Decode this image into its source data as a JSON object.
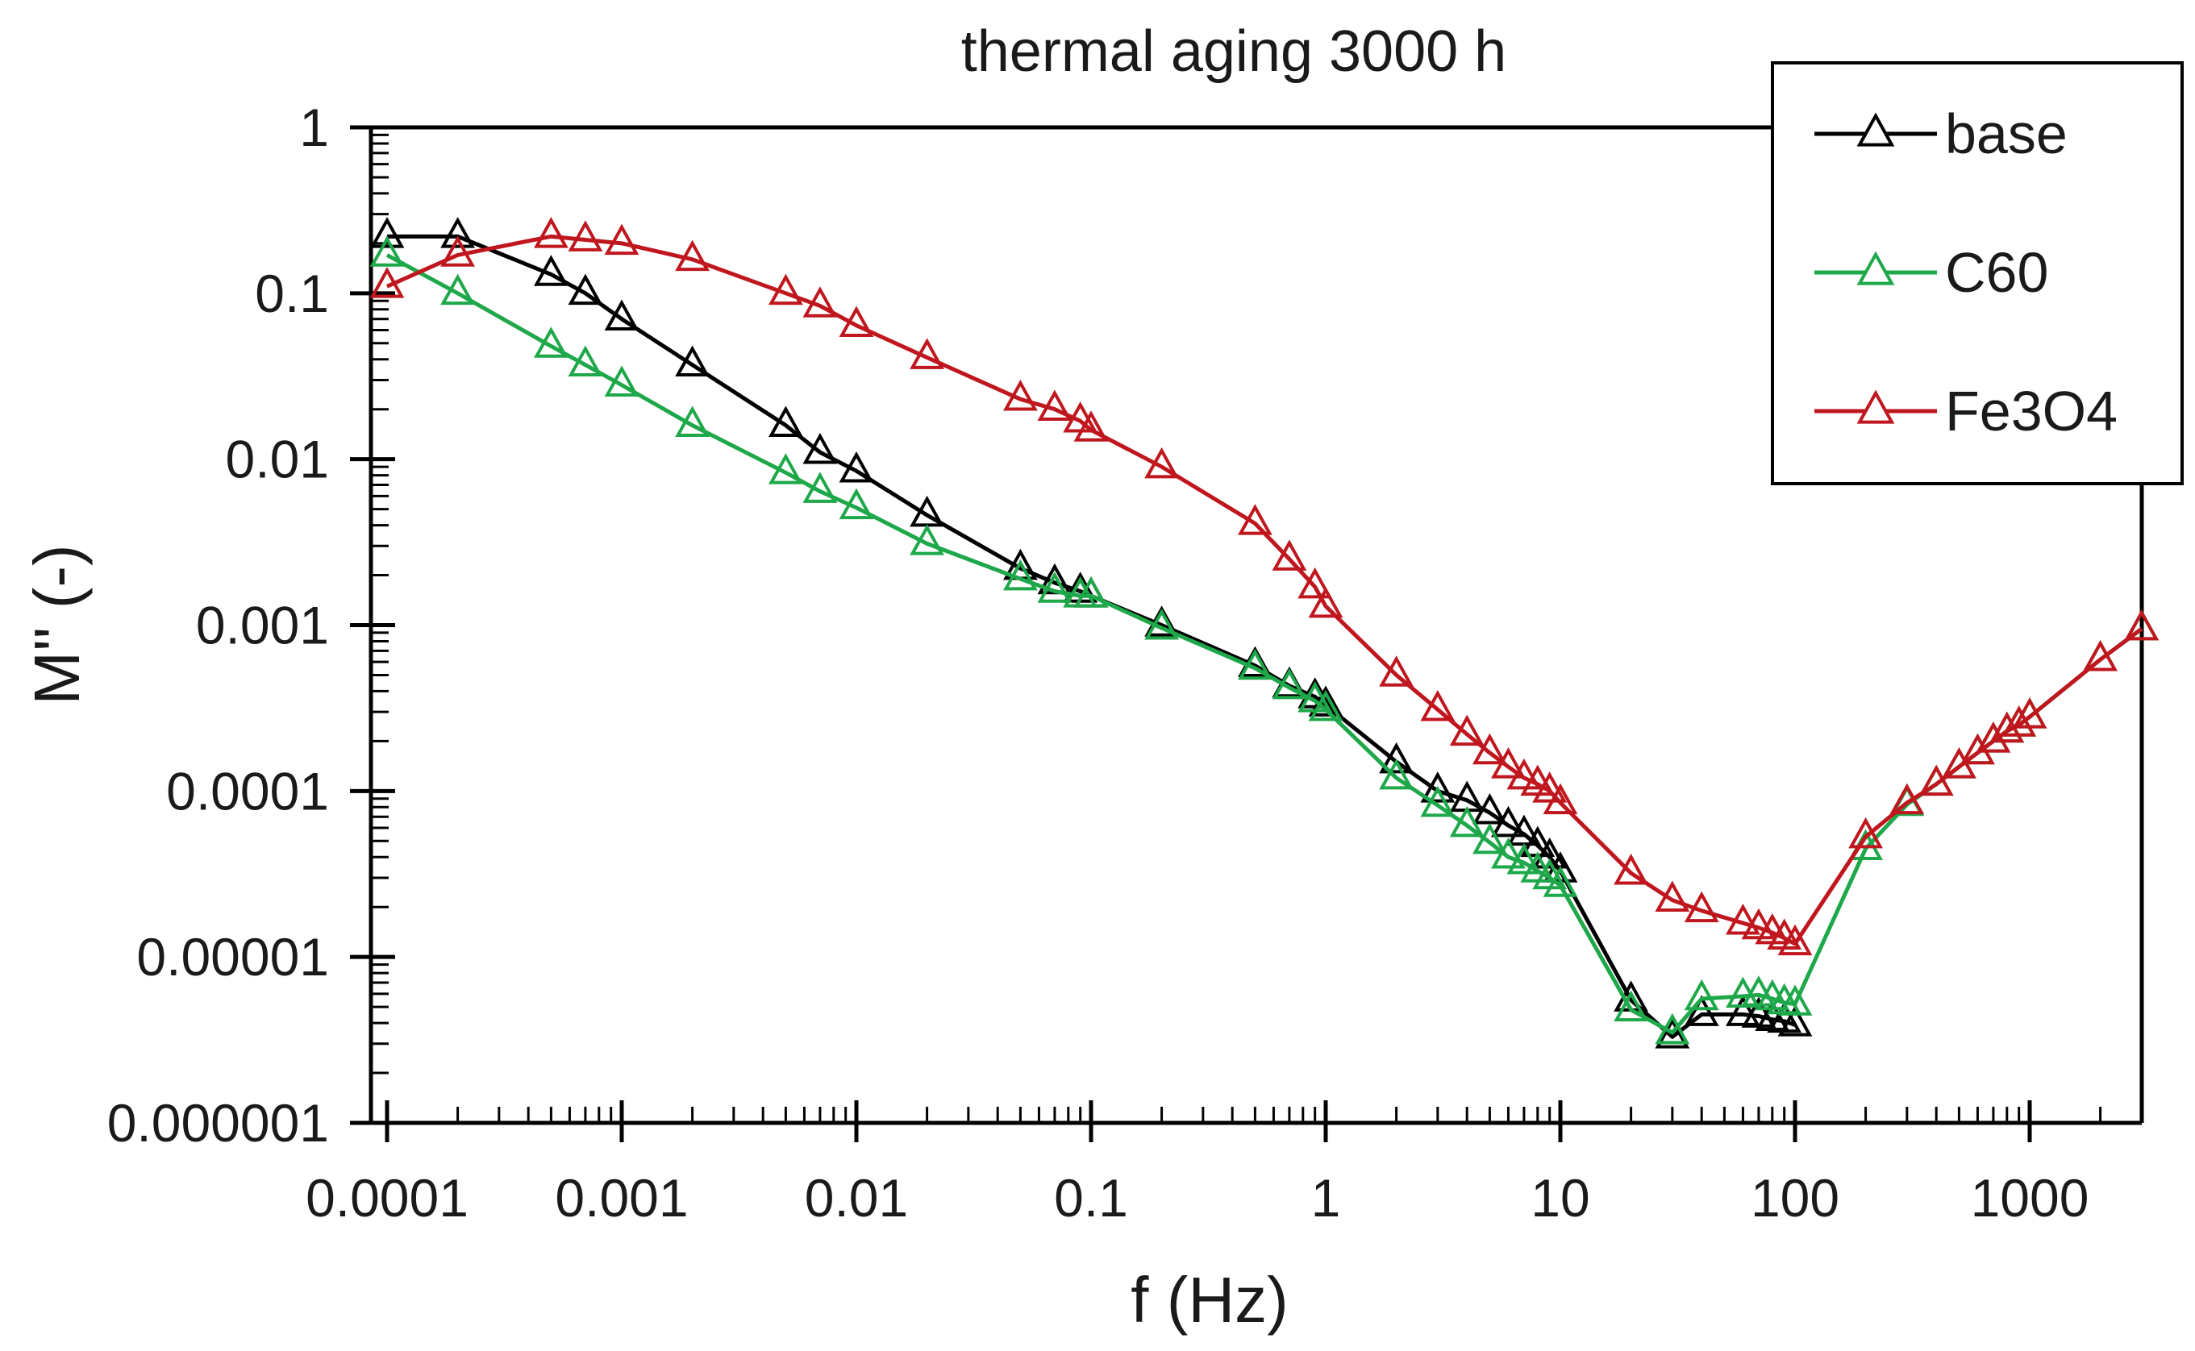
{
  "chart_data": {
    "type": "line",
    "title": "thermal aging 3000 h",
    "xlabel": "f (Hz)",
    "ylabel": "M'' (-)",
    "xscale": "log",
    "yscale": "log",
    "xlim": [
      0.0001,
      3000
    ],
    "ylim": [
      1e-06,
      1
    ],
    "xticks": [
      0.0001,
      0.001,
      0.01,
      0.1,
      1,
      10,
      100,
      1000
    ],
    "xtick_labels": [
      "0.0001",
      "0.001",
      "0.01",
      "0.1",
      "1",
      "10",
      "100",
      "1000"
    ],
    "yticks": [
      1,
      0.1,
      0.01,
      0.001,
      0.0001,
      1e-05,
      1e-06
    ],
    "ytick_labels": [
      "1",
      "0.1",
      "0.01",
      "0.001",
      "0.0001",
      "0.00001",
      "0.000001"
    ],
    "legend_position": "top-right",
    "marker": "open-triangle",
    "series": [
      {
        "name": "base",
        "color": "#000000",
        "x": [
          0.0001,
          0.0002,
          0.0005,
          0.0007,
          0.001,
          0.002,
          0.005,
          0.007,
          0.01,
          0.02,
          0.05,
          0.07,
          0.09,
          0.1,
          0.2,
          0.5,
          0.7,
          0.9,
          1,
          2,
          3,
          4,
          5,
          6,
          7,
          8,
          9,
          10,
          20,
          30,
          40,
          60,
          70,
          80,
          90,
          100
        ],
        "y": [
          0.22,
          0.22,
          0.13,
          0.1,
          0.07,
          0.037,
          0.016,
          0.011,
          0.0085,
          0.0046,
          0.0022,
          0.0018,
          0.0016,
          0.0015,
          0.001,
          0.00057,
          0.00043,
          0.00037,
          0.00033,
          0.00015,
          0.0001,
          8.8e-05,
          7.4e-05,
          6.2e-05,
          5.5e-05,
          4.7e-05,
          4e-05,
          3.3e-05,
          5.5e-06,
          3.3e-06,
          4.5e-06,
          4.5e-06,
          4.4e-06,
          4.2e-06,
          4.1e-06,
          3.9e-06
        ]
      },
      {
        "name": "C60",
        "color": "#1ea84a",
        "x": [
          0.0001,
          0.0002,
          0.0005,
          0.0007,
          0.001,
          0.002,
          0.005,
          0.007,
          0.01,
          0.02,
          0.05,
          0.07,
          0.09,
          0.1,
          0.2,
          0.5,
          0.7,
          0.9,
          1,
          2,
          3,
          4,
          5,
          6,
          7,
          8,
          9,
          10,
          20,
          30,
          40,
          60,
          70,
          80,
          90,
          100,
          200,
          300,
          400,
          500,
          600,
          700,
          800,
          900,
          1000,
          2000,
          3000
        ],
        "y": [
          0.17,
          0.1,
          0.048,
          0.037,
          0.028,
          0.016,
          0.0083,
          0.0064,
          0.0051,
          0.0031,
          0.0019,
          0.0016,
          0.0015,
          0.0015,
          0.00096,
          0.00055,
          0.00042,
          0.00035,
          0.00031,
          0.00012,
          8.2e-05,
          6.2e-05,
          4.9e-05,
          4e-05,
          3.7e-05,
          3.3e-05,
          3e-05,
          2.7e-05,
          4.8e-06,
          3.5e-06,
          5.6e-06,
          5.8e-06,
          5.9e-06,
          5.6e-06,
          5.3e-06,
          5.2e-06,
          4.5e-05,
          8.3e-05,
          0.00011,
          0.00014,
          0.00017,
          0.0002,
          0.00023,
          0.00025,
          0.00028,
          0.00062,
          0.00095
        ]
      },
      {
        "name": "Fe3O4",
        "color": "#c0161e",
        "x": [
          0.0001,
          0.0002,
          0.0005,
          0.0007,
          0.001,
          0.002,
          0.005,
          0.007,
          0.01,
          0.02,
          0.05,
          0.07,
          0.09,
          0.1,
          0.2,
          0.5,
          0.7,
          0.9,
          1,
          2,
          3,
          4,
          5,
          6,
          7,
          8,
          9,
          10,
          20,
          30,
          40,
          60,
          70,
          80,
          90,
          100,
          200,
          300,
          400,
          500,
          600,
          700,
          800,
          900,
          1000,
          2000,
          3000
        ],
        "y": [
          0.11,
          0.17,
          0.22,
          0.21,
          0.2,
          0.16,
          0.1,
          0.084,
          0.064,
          0.041,
          0.023,
          0.02,
          0.017,
          0.015,
          0.009,
          0.0041,
          0.0025,
          0.0017,
          0.0013,
          0.0005,
          0.00031,
          0.00022,
          0.00017,
          0.00014,
          0.00012,
          0.00011,
          0.0001,
          8.5e-05,
          3.2e-05,
          2.2e-05,
          1.9e-05,
          1.6e-05,
          1.5e-05,
          1.4e-05,
          1.3e-05,
          1.2e-05,
          5.3e-05,
          8.5e-05,
          0.00011,
          0.00014,
          0.00017,
          0.0002,
          0.00023,
          0.00025,
          0.00028,
          0.00062,
          0.00095
        ]
      }
    ]
  }
}
